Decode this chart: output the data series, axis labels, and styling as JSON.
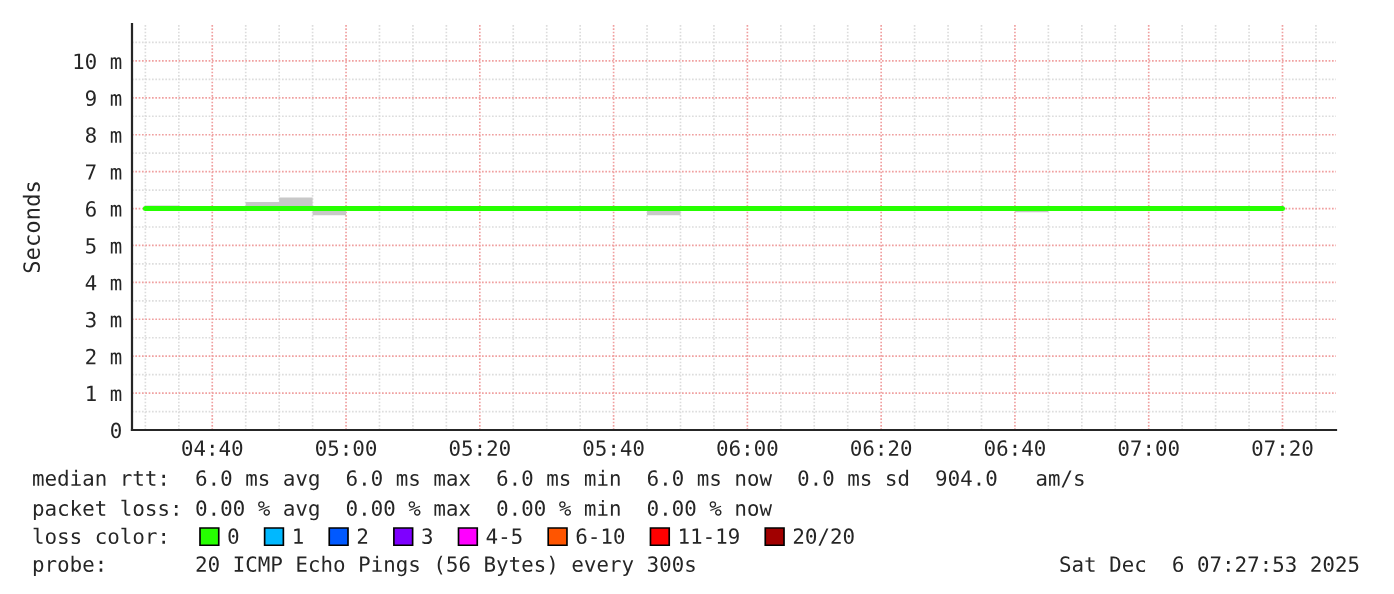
{
  "chart_data": {
    "type": "step",
    "ylabel": "Seconds",
    "legend_title": "loss color:",
    "legend": "bottom",
    "grid": true,
    "xlim": [
      "2025-12-06T04:28",
      "2025-12-06T07:28"
    ],
    "xticks": [
      {
        "value": "2025-12-06T04:40",
        "label": "04:40"
      },
      {
        "value": "2025-12-06T05:00",
        "label": "05:00"
      },
      {
        "value": "2025-12-06T05:20",
        "label": "05:20"
      },
      {
        "value": "2025-12-06T05:40",
        "label": "05:40"
      },
      {
        "value": "2025-12-06T06:00",
        "label": "06:00"
      },
      {
        "value": "2025-12-06T06:20",
        "label": "06:20"
      },
      {
        "value": "2025-12-06T06:40",
        "label": "06:40"
      },
      {
        "value": "2025-12-06T07:00",
        "label": "07:00"
      },
      {
        "value": "2025-12-06T07:20",
        "label": "07:20"
      }
    ],
    "ylim": [
      0,
      11
    ],
    "yticks": [
      0,
      {
        "value": 1,
        "label": "1 m"
      },
      {
        "value": 2,
        "label": "2 m"
      },
      {
        "value": 3,
        "label": "3 m"
      },
      {
        "value": 4,
        "label": "4 m"
      },
      {
        "value": 5,
        "label": "5 m"
      },
      {
        "value": 6,
        "label": "6 m"
      },
      {
        "value": 7,
        "label": "7 m"
      },
      {
        "value": 8,
        "label": "8 m"
      },
      {
        "value": 9,
        "label": "9 m"
      },
      {
        "value": 10,
        "label": "10 m"
      }
    ],
    "x": [
      "2025-12-06T04:30",
      "2025-12-06T04:35",
      "2025-12-06T04:40",
      "2025-12-06T04:45",
      "2025-12-06T04:50",
      "2025-12-06T04:55",
      "2025-12-06T05:00",
      "2025-12-06T05:05",
      "2025-12-06T05:10",
      "2025-12-06T05:15",
      "2025-12-06T05:20",
      "2025-12-06T05:25",
      "2025-12-06T05:30",
      "2025-12-06T05:35",
      "2025-12-06T05:40",
      "2025-12-06T05:45",
      "2025-12-06T05:50",
      "2025-12-06T05:55",
      "2025-12-06T06:00",
      "2025-12-06T06:05",
      "2025-12-06T06:10",
      "2025-12-06T06:15",
      "2025-12-06T06:20",
      "2025-12-06T06:25",
      "2025-12-06T06:30",
      "2025-12-06T06:35",
      "2025-12-06T06:40",
      "2025-12-06T06:45",
      "2025-12-06T06:50",
      "2025-12-06T06:55",
      "2025-12-06T07:00",
      "2025-12-06T07:05",
      "2025-12-06T07:10",
      "2025-12-06T07:15",
      "2025-12-06T07:20"
    ],
    "series": [
      {
        "name": "0",
        "color": "#26ff00",
        "values": [
          6.0,
          6.0,
          6.0,
          6.0,
          6.0,
          6.0,
          6.0,
          6.0,
          6.0,
          6.0,
          6.0,
          6.0,
          6.0,
          6.0,
          6.0,
          6.0,
          6.0,
          6.0,
          6.0,
          6.0,
          6.0,
          6.0,
          6.0,
          6.0,
          6.0,
          6.0,
          6.0,
          6.0,
          6.0,
          6.0,
          6.0,
          6.0,
          6.0,
          6.0,
          6.0
        ],
        "lower": [
          6.0,
          6.0,
          6.0,
          6.0,
          6.0,
          5.82,
          6.0,
          6.0,
          6.0,
          6.0,
          6.0,
          6.0,
          6.0,
          6.0,
          6.0,
          5.82,
          6.0,
          6.0,
          6.0,
          6.0,
          6.0,
          6.0,
          6.0,
          6.0,
          6.0,
          6.0,
          5.9,
          6.0,
          6.0,
          6.0,
          6.0,
          6.0,
          6.0,
          6.0,
          6.0
        ],
        "upper": [
          6.08,
          6.0,
          6.0,
          6.18,
          6.3,
          6.07,
          6.0,
          6.0,
          6.0,
          6.0,
          6.07,
          6.0,
          6.07,
          6.0,
          6.0,
          6.0,
          6.05,
          6.0,
          6.05,
          6.05,
          6.05,
          6.0,
          6.05,
          6.05,
          6.0,
          6.0,
          6.0,
          6.05,
          6.0,
          6.0,
          6.05,
          6.0,
          6.0,
          6.05,
          6.05
        ]
      },
      {
        "name": "1",
        "color": "#00b8ff",
        "values": [
          null,
          null,
          null,
          null,
          null,
          null,
          null,
          null,
          null,
          null,
          null,
          null,
          null,
          null,
          null,
          null,
          null,
          null,
          null,
          null,
          null,
          null,
          null,
          null,
          null,
          null,
          null,
          null,
          null,
          null,
          null,
          null,
          null,
          null,
          null
        ]
      },
      {
        "name": "2",
        "color": "#0059ff",
        "values": [
          null,
          null,
          null,
          null,
          null,
          null,
          null,
          null,
          null,
          null,
          null,
          null,
          null,
          null,
          null,
          null,
          null,
          null,
          null,
          null,
          null,
          null,
          null,
          null,
          null,
          null,
          null,
          null,
          null,
          null,
          null,
          null,
          null,
          null,
          null
        ]
      },
      {
        "name": "3",
        "color": "#7e00ff",
        "values": [
          null,
          null,
          null,
          null,
          null,
          null,
          null,
          null,
          null,
          null,
          null,
          null,
          null,
          null,
          null,
          null,
          null,
          null,
          null,
          null,
          null,
          null,
          null,
          null,
          null,
          null,
          null,
          null,
          null,
          null,
          null,
          null,
          null,
          null,
          null
        ]
      },
      {
        "name": "4-5",
        "color": "#ff00ff",
        "values": [
          null,
          null,
          null,
          null,
          null,
          null,
          null,
          null,
          null,
          null,
          null,
          null,
          null,
          null,
          null,
          null,
          null,
          null,
          null,
          null,
          null,
          null,
          null,
          null,
          null,
          null,
          null,
          null,
          null,
          null,
          null,
          null,
          null,
          null,
          null
        ]
      },
      {
        "name": "6-10",
        "color": "#ff5500",
        "values": [
          null,
          null,
          null,
          null,
          null,
          null,
          null,
          null,
          null,
          null,
          null,
          null,
          null,
          null,
          null,
          null,
          null,
          null,
          null,
          null,
          null,
          null,
          null,
          null,
          null,
          null,
          null,
          null,
          null,
          null,
          null,
          null,
          null,
          null,
          null
        ]
      },
      {
        "name": "11-19",
        "color": "#ff0000",
        "values": [
          null,
          null,
          null,
          null,
          null,
          null,
          null,
          null,
          null,
          null,
          null,
          null,
          null,
          null,
          null,
          null,
          null,
          null,
          null,
          null,
          null,
          null,
          null,
          null,
          null,
          null,
          null,
          null,
          null,
          null,
          null,
          null,
          null,
          null,
          null
        ]
      },
      {
        "name": "20/20",
        "color": "#a10000",
        "values": [
          null,
          null,
          null,
          null,
          null,
          null,
          null,
          null,
          null,
          null,
          null,
          null,
          null,
          null,
          null,
          null,
          null,
          null,
          null,
          null,
          null,
          null,
          null,
          null,
          null,
          null,
          null,
          null,
          null,
          null,
          null,
          null,
          null,
          null,
          null
        ]
      }
    ],
    "annotations": [
      "median rtt:  6.0 ms avg  6.0 ms max  6.0 ms min  6.0 ms now  0.0 ms sd  904.0   am/s",
      "packet loss: 0.00 % avg  0.00 % max  0.00 % min  0.00 % now",
      "probe:       20 ICMP Echo Pings (56 Bytes) every 300s",
      "Sat Dec  6 07:27:53 2025"
    ]
  }
}
